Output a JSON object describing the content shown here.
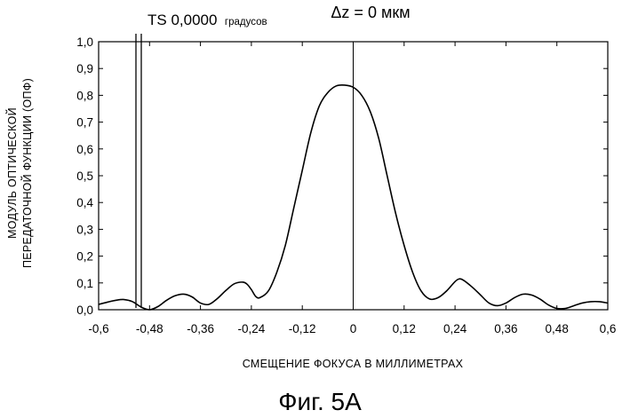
{
  "chart_data": {
    "type": "line",
    "top_note": "Δz = 0 мкм",
    "legend": {
      "label": "TS 0,0000",
      "unit": "градусов"
    },
    "ylabel_line1": "МОДУЛЬ ОПТИЧЕСКОЙ",
    "ylabel_line2": "ПЕРЕДАТОЧНОЙ ФУНКЦИИ (ОПФ)",
    "xlabel": "СМЕЩЕНИЕ ФОКУСА В МИЛЛИМЕТРАХ",
    "caption": "Фиг. 5А",
    "xlim": [
      -0.6,
      0.6
    ],
    "ylim": [
      0,
      1.0
    ],
    "x_ticks": [
      -0.6,
      -0.48,
      -0.36,
      -0.24,
      -0.12,
      0,
      0.12,
      0.24,
      0.36,
      0.48,
      0.6
    ],
    "x_tick_labels": [
      "-0,6",
      "-0,48",
      "-0,36",
      "-0,24",
      "-0,12",
      "0",
      "0,12",
      "0,24",
      "0,36",
      "0,48",
      "0,6"
    ],
    "y_ticks": [
      0,
      0.1,
      0.2,
      0.3,
      0.4,
      0.5,
      0.6,
      0.7,
      0.8,
      0.9,
      1.0
    ],
    "y_tick_labels": [
      "0,0",
      "0,1",
      "0,2",
      "0,3",
      "0,4",
      "0,5",
      "0,6",
      "0,7",
      "0,8",
      "0,9",
      "1,0"
    ],
    "vertical_line_at": 0,
    "grid": false,
    "series": [
      {
        "x": [
          -0.6,
          -0.58,
          -0.56,
          -0.54,
          -0.52,
          -0.5,
          -0.48,
          -0.46,
          -0.44,
          -0.42,
          -0.4,
          -0.38,
          -0.36,
          -0.34,
          -0.32,
          -0.3,
          -0.28,
          -0.26,
          -0.25,
          -0.24,
          -0.23,
          -0.22,
          -0.2,
          -0.18,
          -0.16,
          -0.14,
          -0.12,
          -0.1,
          -0.08,
          -0.06,
          -0.04,
          -0.02,
          0,
          0.02,
          0.04,
          0.06,
          0.08,
          0.1,
          0.12,
          0.14,
          0.16,
          0.18,
          0.2,
          0.22,
          0.24,
          0.25,
          0.26,
          0.28,
          0.3,
          0.32,
          0.34,
          0.36,
          0.38,
          0.4,
          0.42,
          0.44,
          0.46,
          0.48,
          0.5,
          0.52,
          0.54,
          0.56,
          0.58,
          0.6
        ],
        "y": [
          0.02,
          0.028,
          0.035,
          0.038,
          0.03,
          0.01,
          0.0,
          0.012,
          0.035,
          0.052,
          0.058,
          0.048,
          0.025,
          0.02,
          0.042,
          0.072,
          0.097,
          0.103,
          0.095,
          0.075,
          0.05,
          0.045,
          0.07,
          0.14,
          0.24,
          0.38,
          0.52,
          0.66,
          0.76,
          0.81,
          0.835,
          0.838,
          0.83,
          0.8,
          0.74,
          0.64,
          0.5,
          0.36,
          0.24,
          0.14,
          0.07,
          0.04,
          0.045,
          0.07,
          0.105,
          0.115,
          0.11,
          0.085,
          0.055,
          0.025,
          0.015,
          0.025,
          0.045,
          0.058,
          0.055,
          0.04,
          0.018,
          0.005,
          0.005,
          0.015,
          0.025,
          0.03,
          0.03,
          0.025
        ]
      }
    ]
  }
}
